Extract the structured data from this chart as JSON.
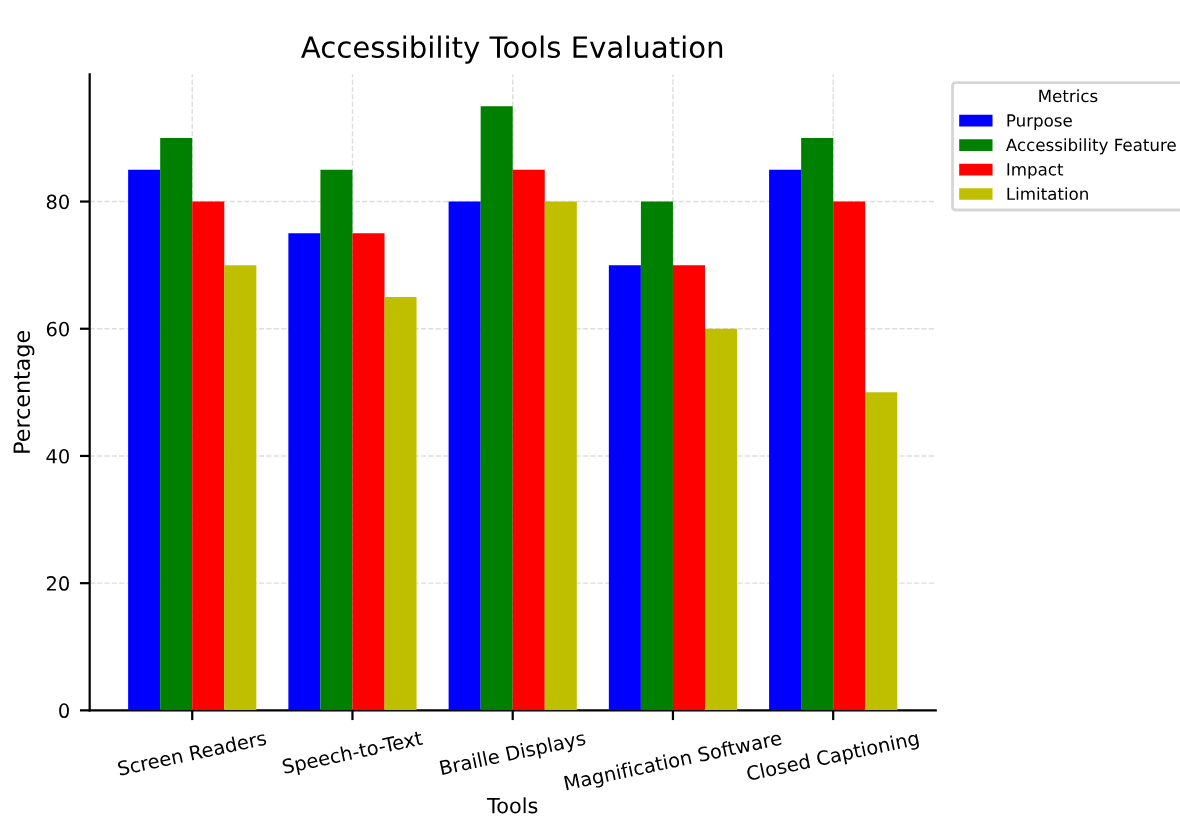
{
  "chart_data": {
    "type": "bar",
    "title": "Accessibility Tools Evaluation",
    "xlabel": "Tools",
    "ylabel": "Percentage",
    "legend_title": "Metrics",
    "categories": [
      "Screen Readers",
      "Speech-to-Text",
      "Braille Displays",
      "Magnification Software",
      "Closed Captioning"
    ],
    "series": [
      {
        "name": "Purpose",
        "color": "#0000ff",
        "values": [
          85,
          75,
          80,
          70,
          85
        ]
      },
      {
        "name": "Accessibility Feature",
        "color": "#008000",
        "values": [
          90,
          85,
          95,
          80,
          90
        ]
      },
      {
        "name": "Impact",
        "color": "#ff0000",
        "values": [
          80,
          75,
          85,
          70,
          80
        ]
      },
      {
        "name": "Limitation",
        "color": "#bfbf00",
        "values": [
          70,
          65,
          80,
          60,
          50
        ]
      }
    ],
    "ylim": [
      0,
      100
    ],
    "yticks": [
      0,
      20,
      40,
      60,
      80
    ],
    "grid": true,
    "legend": "top right"
  }
}
